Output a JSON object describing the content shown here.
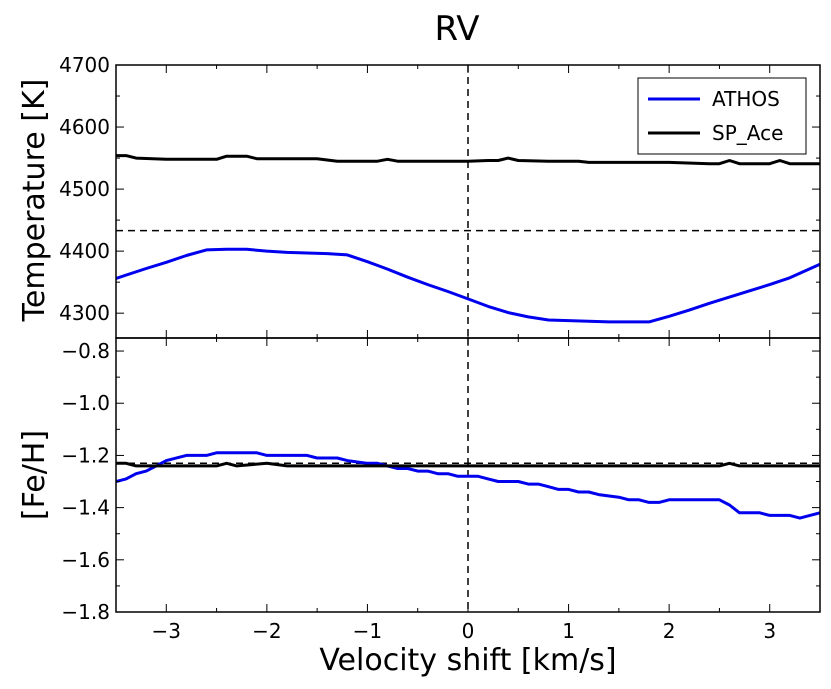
{
  "chart_data": {
    "type": "line",
    "title": "RV",
    "xlabel": "Velocity shift [km/s]",
    "xlim": [
      -3.5,
      3.5
    ],
    "xticks": [
      -3,
      -2,
      -1,
      0,
      1,
      2,
      3
    ],
    "xtick_labels": [
      "−3",
      "−2",
      "−1",
      "0",
      "1",
      "2",
      "3"
    ],
    "vline_x": 0,
    "legend": {
      "location": "top-right",
      "entries": [
        {
          "name": "ATHOS",
          "color": "#0000ee"
        },
        {
          "name": "SP_Ace",
          "color": "#000000"
        }
      ]
    },
    "panels": [
      {
        "id": "temperature",
        "ylabel": "Temperature [K]",
        "ylim": [
          4260,
          4700
        ],
        "yticks": [
          4300,
          4400,
          4500,
          4600,
          4700
        ],
        "ytick_labels": [
          "4300",
          "4400",
          "4500",
          "4600",
          "4700"
        ],
        "hline_y": 4433,
        "series": [
          {
            "name": "ATHOS",
            "color": "#0000ee",
            "x": [
              -3.5,
              -3.2,
              -3.0,
              -2.8,
              -2.6,
              -2.4,
              -2.2,
              -2.0,
              -1.8,
              -1.6,
              -1.4,
              -1.2,
              -1.0,
              -0.8,
              -0.6,
              -0.4,
              -0.2,
              0.0,
              0.2,
              0.4,
              0.6,
              0.8,
              1.0,
              1.2,
              1.4,
              1.6,
              1.8,
              2.0,
              2.2,
              2.4,
              2.6,
              2.8,
              3.0,
              3.2,
              3.5
            ],
            "y": [
              4356,
              4372,
              4382,
              4393,
              4402,
              4403,
              4403,
              4400,
              4398,
              4397,
              4396,
              4394,
              4383,
              4371,
              4358,
              4346,
              4335,
              4323,
              4311,
              4301,
              4294,
              4289,
              4288,
              4287,
              4286,
              4286,
              4286,
              4295,
              4305,
              4316,
              4326,
              4336,
              4346,
              4357,
              4379
            ]
          },
          {
            "name": "SP_Ace",
            "color": "#000000",
            "x": [
              -3.5,
              -3.4,
              -3.3,
              -3.0,
              -2.5,
              -2.4,
              -2.2,
              -2.1,
              -1.5,
              -1.3,
              -0.9,
              -0.8,
              -0.7,
              0.0,
              0.2,
              0.3,
              0.4,
              0.5,
              0.8,
              1.1,
              1.2,
              2.0,
              2.4,
              2.5,
              2.6,
              2.7,
              3.0,
              3.1,
              3.2,
              3.3,
              3.5
            ],
            "y": [
              4554,
              4554,
              4550,
              4548,
              4548,
              4553,
              4553,
              4549,
              4549,
              4545,
              4545,
              4548,
              4545,
              4545,
              4546,
              4546,
              4550,
              4546,
              4545,
              4545,
              4543,
              4543,
              4541,
              4541,
              4546,
              4541,
              4541,
              4546,
              4541,
              4541,
              4541
            ]
          }
        ]
      },
      {
        "id": "metallicity",
        "ylabel": "[Fe/H]",
        "ylim": [
          -1.8,
          -0.75
        ],
        "yticks": [
          -1.8,
          -1.6,
          -1.4,
          -1.2,
          -1.0,
          -0.8
        ],
        "ytick_labels": [
          "−1.8",
          "−1.6",
          "−1.4",
          "−1.2",
          "−1.0",
          "−0.8"
        ],
        "hline_y": -1.23,
        "series": [
          {
            "name": "ATHOS",
            "color": "#0000ee",
            "x": [
              -3.5,
              -3.4,
              -3.3,
              -3.2,
              -3.1,
              -3.0,
              -2.8,
              -2.6,
              -2.5,
              -2.4,
              -2.2,
              -2.1,
              -2.0,
              -1.8,
              -1.6,
              -1.5,
              -1.3,
              -1.2,
              -1.0,
              -0.9,
              -0.8,
              -0.7,
              -0.6,
              -0.5,
              -0.4,
              -0.3,
              -0.2,
              -0.1,
              0.0,
              0.1,
              0.2,
              0.3,
              0.4,
              0.5,
              0.6,
              0.7,
              0.8,
              0.9,
              1.0,
              1.1,
              1.2,
              1.3,
              1.5,
              1.6,
              1.7,
              1.8,
              1.9,
              2.0,
              2.1,
              2.5,
              2.6,
              2.7,
              2.9,
              3.0,
              3.2,
              3.3,
              3.4,
              3.5
            ],
            "y": [
              -1.3,
              -1.29,
              -1.27,
              -1.26,
              -1.24,
              -1.22,
              -1.2,
              -1.2,
              -1.19,
              -1.19,
              -1.19,
              -1.19,
              -1.2,
              -1.2,
              -1.2,
              -1.21,
              -1.21,
              -1.22,
              -1.23,
              -1.23,
              -1.24,
              -1.25,
              -1.25,
              -1.26,
              -1.26,
              -1.27,
              -1.27,
              -1.28,
              -1.28,
              -1.28,
              -1.29,
              -1.3,
              -1.3,
              -1.3,
              -1.31,
              -1.31,
              -1.32,
              -1.33,
              -1.33,
              -1.34,
              -1.34,
              -1.35,
              -1.36,
              -1.37,
              -1.37,
              -1.38,
              -1.38,
              -1.37,
              -1.37,
              -1.37,
              -1.39,
              -1.42,
              -1.42,
              -1.43,
              -1.43,
              -1.44,
              -1.43,
              -1.42
            ]
          },
          {
            "name": "SP_Ace",
            "color": "#000000",
            "x": [
              -3.5,
              -3.4,
              -3.3,
              -3.0,
              -2.5,
              -2.4,
              -2.3,
              -2.0,
              -1.8,
              -1.5,
              0.0,
              1.0,
              2.0,
              2.5,
              2.6,
              2.7,
              3.0,
              3.5
            ],
            "y": [
              -1.23,
              -1.23,
              -1.24,
              -1.24,
              -1.24,
              -1.23,
              -1.24,
              -1.23,
              -1.24,
              -1.24,
              -1.24,
              -1.24,
              -1.24,
              -1.24,
              -1.23,
              -1.24,
              -1.24,
              -1.24
            ]
          }
        ]
      }
    ]
  }
}
